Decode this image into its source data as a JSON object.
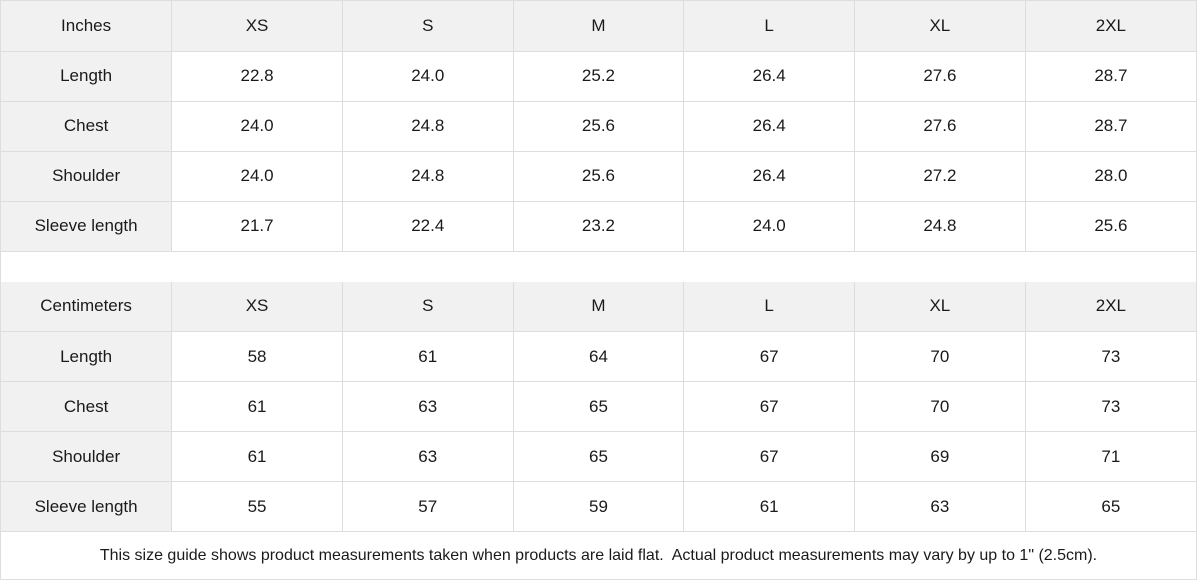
{
  "colors": {
    "header_bg": "#f1f1f1",
    "cell_bg": "#ffffff",
    "border": "#dddddd",
    "text": "#1a1a1a"
  },
  "tables": [
    {
      "unit_label": "Inches",
      "sizes": [
        "XS",
        "S",
        "M",
        "L",
        "XL",
        "2XL"
      ],
      "rows": [
        {
          "label": "Length",
          "values": [
            "22.8",
            "24.0",
            "25.2",
            "26.4",
            "27.6",
            "28.7"
          ]
        },
        {
          "label": "Chest",
          "values": [
            "24.0",
            "24.8",
            "25.6",
            "26.4",
            "27.6",
            "28.7"
          ]
        },
        {
          "label": "Shoulder",
          "values": [
            "24.0",
            "24.8",
            "25.6",
            "26.4",
            "27.2",
            "28.0"
          ]
        },
        {
          "label": "Sleeve length",
          "values": [
            "21.7",
            "22.4",
            "23.2",
            "24.0",
            "24.8",
            "25.6"
          ]
        }
      ]
    },
    {
      "unit_label": "Centimeters",
      "sizes": [
        "XS",
        "S",
        "M",
        "L",
        "XL",
        "2XL"
      ],
      "rows": [
        {
          "label": "Length",
          "values": [
            "58",
            "61",
            "64",
            "67",
            "70",
            "73"
          ]
        },
        {
          "label": "Chest",
          "values": [
            "61",
            "63",
            "65",
            "67",
            "70",
            "73"
          ]
        },
        {
          "label": "Shoulder",
          "values": [
            "61",
            "63",
            "65",
            "67",
            "69",
            "71"
          ]
        },
        {
          "label": "Sleeve length",
          "values": [
            "55",
            "57",
            "59",
            "61",
            "63",
            "65"
          ]
        }
      ]
    }
  ],
  "footer_note": "This size guide shows product measurements taken when products are laid flat.  Actual product measurements may vary by up to 1\" (2.5cm).",
  "chart_data": [
    {
      "type": "table",
      "title": "Inches",
      "categories": [
        "XS",
        "S",
        "M",
        "L",
        "XL",
        "2XL"
      ],
      "series": [
        {
          "name": "Length",
          "values": [
            22.8,
            24.0,
            25.2,
            26.4,
            27.6,
            28.7
          ]
        },
        {
          "name": "Chest",
          "values": [
            24.0,
            24.8,
            25.6,
            26.4,
            27.6,
            28.7
          ]
        },
        {
          "name": "Shoulder",
          "values": [
            24.0,
            24.8,
            25.6,
            26.4,
            27.2,
            28.0
          ]
        },
        {
          "name": "Sleeve length",
          "values": [
            21.7,
            22.4,
            23.2,
            24.0,
            24.8,
            25.6
          ]
        }
      ]
    },
    {
      "type": "table",
      "title": "Centimeters",
      "categories": [
        "XS",
        "S",
        "M",
        "L",
        "XL",
        "2XL"
      ],
      "series": [
        {
          "name": "Length",
          "values": [
            58,
            61,
            64,
            67,
            70,
            73
          ]
        },
        {
          "name": "Chest",
          "values": [
            61,
            63,
            65,
            67,
            70,
            73
          ]
        },
        {
          "name": "Shoulder",
          "values": [
            61,
            63,
            65,
            67,
            69,
            71
          ]
        },
        {
          "name": "Sleeve length",
          "values": [
            55,
            57,
            59,
            61,
            63,
            65
          ]
        }
      ]
    }
  ]
}
